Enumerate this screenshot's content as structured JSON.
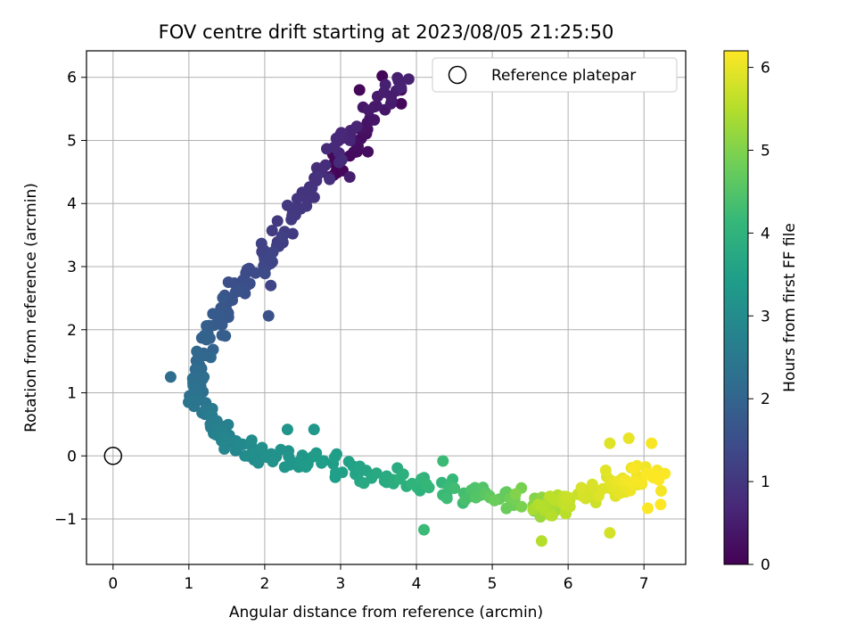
{
  "chart_data": {
    "type": "scatter",
    "title": "FOV centre drift starting at 2023/08/05 21:25:50",
    "xlabel": "Angular distance from reference (arcmin)",
    "ylabel": "Rotation from reference (arcmin)",
    "xlim": [
      -0.35,
      7.55
    ],
    "ylim": [
      -1.72,
      6.42
    ],
    "xticks": [
      "0",
      "1",
      "2",
      "3",
      "4",
      "5",
      "6",
      "7"
    ],
    "yticks": [
      "−1",
      "0",
      "1",
      "2",
      "3",
      "4",
      "5",
      "6"
    ],
    "grid": true,
    "legend": {
      "placement": "top-right",
      "entries": [
        "Reference platepar"
      ]
    },
    "reference_point": {
      "x": 0,
      "y": 0
    },
    "colorbar": {
      "label": "Hours from first FF file",
      "range": [
        0,
        6.2
      ],
      "ticks": [
        "0",
        "1",
        "2",
        "3",
        "4",
        "5",
        "6"
      ],
      "colormap": "viridis"
    },
    "colormap_stops": [
      "#440154",
      "#482878",
      "#3e4989",
      "#31688e",
      "#26828e",
      "#1f9e89",
      "#35b779",
      "#6ece58",
      "#b5de2b",
      "#fde725"
    ],
    "segments": [
      {
        "t0": 0.0,
        "t1": 0.6,
        "x0": 2.85,
        "x1": 3.8,
        "y0": 4.4,
        "y1": 6.0,
        "noise": 0.28
      },
      {
        "t0": 0.6,
        "t1": 1.1,
        "x0": 3.2,
        "x1": 2.2,
        "y0": 5.3,
        "y1": 3.5,
        "noise": 0.25
      },
      {
        "t0": 1.1,
        "t1": 1.7,
        "x0": 2.3,
        "x1": 1.4,
        "y0": 3.5,
        "y1": 2.3,
        "noise": 0.28
      },
      {
        "t0": 1.7,
        "t1": 2.3,
        "x0": 1.4,
        "x1": 1.05,
        "y0": 2.3,
        "y1": 1.0,
        "noise": 0.22
      },
      {
        "t0": 2.3,
        "t1": 2.9,
        "x0": 1.05,
        "x1": 1.6,
        "y0": 1.0,
        "y1": 0.1,
        "noise": 0.22
      },
      {
        "t0": 2.9,
        "t1": 3.5,
        "x0": 1.6,
        "x1": 3.0,
        "y0": 0.1,
        "y1": -0.2,
        "noise": 0.3
      },
      {
        "t0": 3.5,
        "t1": 4.3,
        "x0": 3.0,
        "x1": 4.6,
        "y0": -0.2,
        "y1": -0.6,
        "noise": 0.3
      },
      {
        "t0": 4.3,
        "t1": 5.4,
        "x0": 4.6,
        "x1": 5.9,
        "y0": -0.6,
        "y1": -0.8,
        "noise": 0.3
      },
      {
        "t0": 5.4,
        "t1": 5.9,
        "x0": 5.6,
        "x1": 6.5,
        "y0": -0.9,
        "y1": -0.5,
        "noise": 0.3
      },
      {
        "t0": 5.9,
        "t1": 6.2,
        "x0": 6.5,
        "x1": 7.2,
        "y0": -0.5,
        "y1": -0.3,
        "noise": 0.35
      }
    ],
    "points_per_segment": 40,
    "extra_points": [
      {
        "x": 3.55,
        "y": 6.02,
        "t": 0.05
      },
      {
        "x": 3.25,
        "y": 5.8,
        "t": 0.1
      },
      {
        "x": 3.8,
        "y": 5.8,
        "t": 0.12
      },
      {
        "x": 3.8,
        "y": 5.58,
        "t": 0.15
      },
      {
        "x": 2.85,
        "y": 4.42,
        "t": 0.45
      },
      {
        "x": 3.12,
        "y": 4.42,
        "t": 0.5
      },
      {
        "x": 2.3,
        "y": 3.97,
        "t": 1.05
      },
      {
        "x": 2.55,
        "y": 3.96,
        "t": 1.0
      },
      {
        "x": 2.08,
        "y": 2.7,
        "t": 1.3
      },
      {
        "x": 2.05,
        "y": 2.22,
        "t": 1.55
      },
      {
        "x": 1.48,
        "y": 1.9,
        "t": 1.85
      },
      {
        "x": 0.76,
        "y": 1.25,
        "t": 2.2
      },
      {
        "x": 4.1,
        "y": -1.17,
        "t": 4.2
      },
      {
        "x": 5.65,
        "y": -1.35,
        "t": 5.5
      },
      {
        "x": 6.55,
        "y": -1.22,
        "t": 5.8
      },
      {
        "x": 6.55,
        "y": 0.2,
        "t": 5.9
      },
      {
        "x": 6.8,
        "y": 0.28,
        "t": 6.0
      },
      {
        "x": 7.1,
        "y": 0.2,
        "t": 6.15
      },
      {
        "x": 7.22,
        "y": -0.77,
        "t": 6.2
      },
      {
        "x": 7.05,
        "y": -0.83,
        "t": 6.18
      },
      {
        "x": 4.35,
        "y": -0.08,
        "t": 4.2
      },
      {
        "x": 2.65,
        "y": 0.42,
        "t": 3.3
      },
      {
        "x": 2.3,
        "y": 0.42,
        "t": 3.2
      }
    ]
  }
}
